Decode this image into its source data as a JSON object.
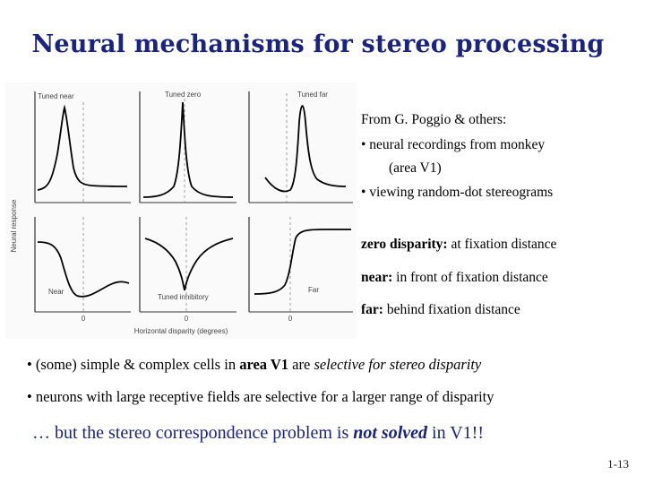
{
  "title": "Neural mechanisms for stereo processing",
  "figure": {
    "ylabel": "Neural response",
    "xlabel": "Horizontal disparity (degrees)",
    "zero_tick": "0",
    "panels": [
      {
        "label": "Tuned near"
      },
      {
        "label": "Tuned zero"
      },
      {
        "label": "Tuned far"
      },
      {
        "label": "Near"
      },
      {
        "label": "Tuned inhibitory"
      },
      {
        "label": "Far"
      }
    ]
  },
  "side": {
    "line1": "From G. Poggio & others:",
    "line2": "• neural recordings from monkey",
    "line3": "(area V1)",
    "line4": "• viewing random-dot stereograms",
    "zero_term": "zero disparity:",
    "zero_def": " at fixation distance",
    "near_term": "near:",
    "near_def": " in front of fixation distance",
    "far_term": "far:",
    "far_def": " behind fixation distance"
  },
  "bullets": {
    "b1_pre": "• (some) simple & complex cells in ",
    "b1_bold": "area V1",
    "b1_mid": " are ",
    "b1_ital": "selective for stereo disparity",
    "b2": "• neurons with large receptive fields are selective for a larger range of disparity"
  },
  "bottom": {
    "pre": "… but the stereo correspondence problem is ",
    "em": "not solved",
    "post": " in V1!!"
  },
  "page_number": "1-13"
}
